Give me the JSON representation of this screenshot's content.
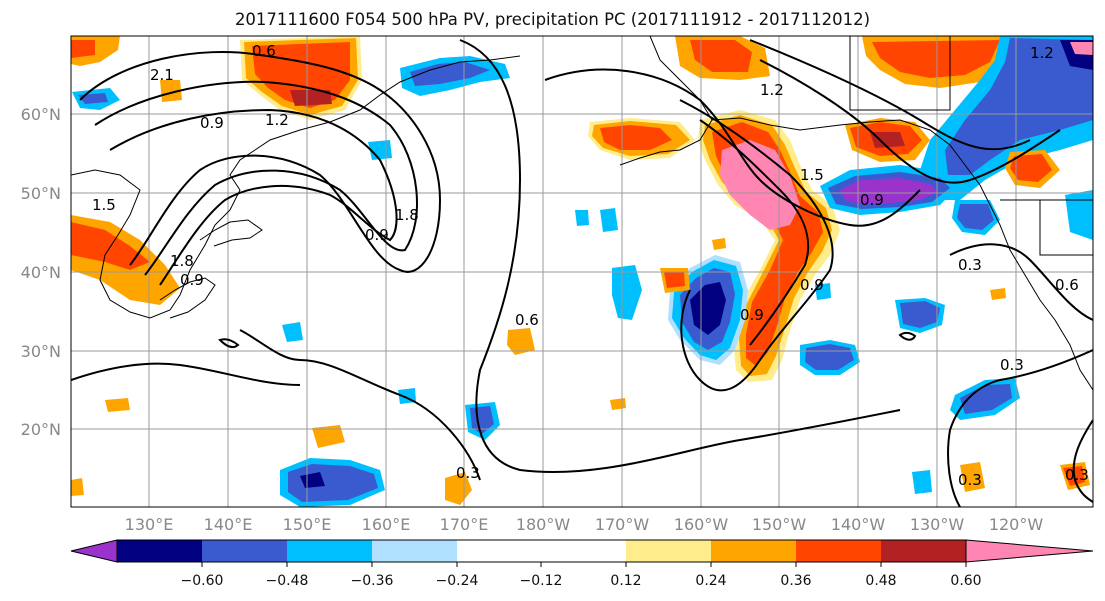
{
  "title": "2017111600 F054 500 hPa PV, precipitation PC (2017111912 - 2017112012)",
  "lat_labels": [
    "60°N",
    "50°N",
    "40°N",
    "30°N",
    "20°N"
  ],
  "lon_labels": [
    "130°E",
    "140°E",
    "150°E",
    "160°E",
    "170°E",
    "180°W",
    "170°W",
    "160°W",
    "150°W",
    "140°W",
    "130°W",
    "120°W"
  ],
  "colorbar": {
    "colors": [
      "#9933cc",
      "#000080",
      "#3a5bd0",
      "#00bfff",
      "#b0e0ff",
      "#ffffff",
      "#ffec8b",
      "#ffa500",
      "#ff4500",
      "#b22222",
      "#ff85b3"
    ],
    "tick_labels": [
      "−0.60",
      "−0.48",
      "−0.36",
      "−0.24",
      "−0.12",
      "0.12",
      "0.24",
      "0.36",
      "0.48",
      "0.60"
    ]
  },
  "contour_labels": [
    "0.6",
    "0.9",
    "1.2",
    "1.5",
    "1.8",
    "2.1",
    "0.9",
    "1.8",
    "0.9",
    "0.3",
    "0.6",
    "0.9",
    "1.2",
    "0.3",
    "0.3",
    "0.3",
    "0.6",
    "0.3",
    "0.9",
    "1.5",
    "0.9",
    "1.2"
  ]
}
